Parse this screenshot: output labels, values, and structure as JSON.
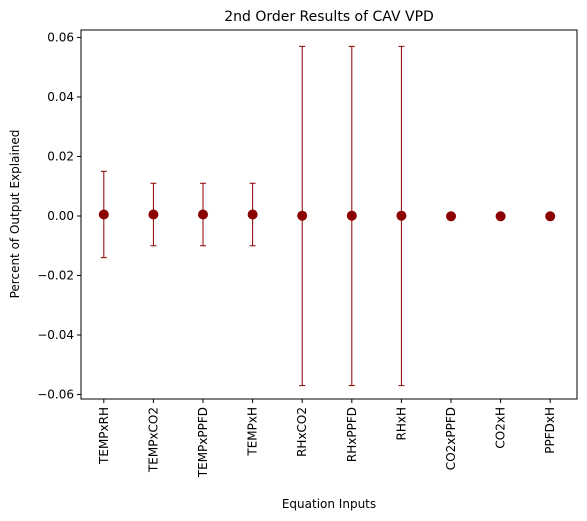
{
  "chart_data": {
    "type": "scatter",
    "title": "2nd Order Results of CAV VPD",
    "xlabel": "Equation Inputs",
    "ylabel": "Percent of Output Explained",
    "categories": [
      "TEMPxRH",
      "TEMPxCO2",
      "TEMPxPPFD",
      "TEMPxH",
      "RHxCO2",
      "RHxPPFD",
      "RHxH",
      "CO2xPPFD",
      "CO2xH",
      "PPFDxH"
    ],
    "values": [
      0.0005,
      0.0005,
      0.0005,
      0.0005,
      0.0001,
      0.0001,
      0.0001,
      -0.0001,
      -0.0001,
      -0.0001
    ],
    "error_low": [
      -0.014,
      -0.01,
      -0.01,
      -0.01,
      -0.057,
      -0.057,
      -0.057,
      -0.0001,
      -0.0001,
      -0.0001
    ],
    "error_high": [
      0.015,
      0.011,
      0.011,
      0.011,
      0.057,
      0.057,
      0.057,
      -0.0001,
      -0.0001,
      -0.0001
    ],
    "ylim": [
      -0.0615,
      0.0625
    ],
    "yticks": [
      -0.06,
      -0.04,
      -0.02,
      0.0,
      0.02,
      0.04,
      0.06
    ],
    "ytick_labels": [
      "−0.06",
      "−0.04",
      "−0.02",
      "0.00",
      "0.02",
      "0.04",
      "0.06"
    ],
    "grid": false,
    "colors": {
      "marker": "#8b0000",
      "errorbar": "#8b0000",
      "axes": "#000000"
    }
  }
}
